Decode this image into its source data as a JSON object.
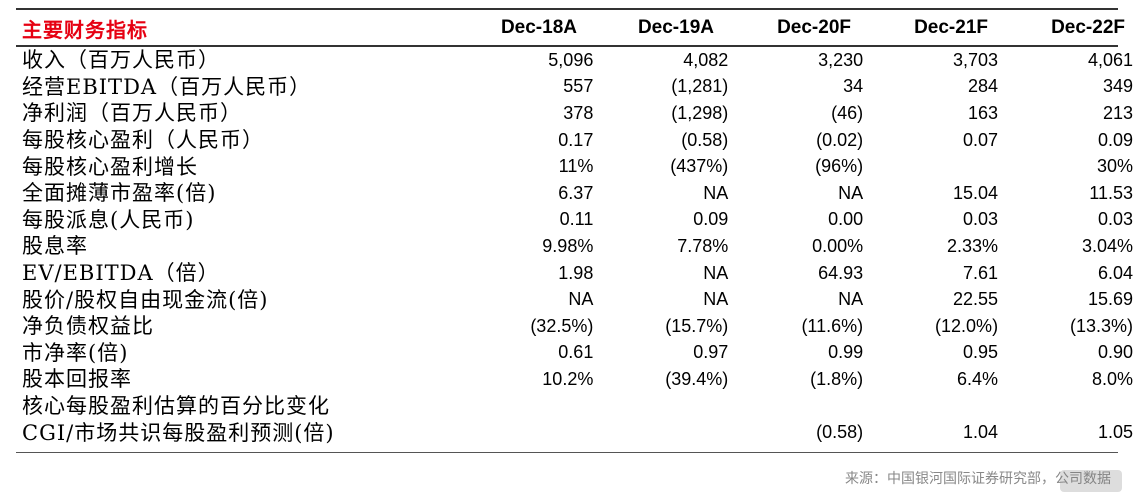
{
  "title": "主要财务指标",
  "columns": [
    "Dec-18A",
    "Dec-19A",
    "Dec-20F",
    "Dec-21F",
    "Dec-22F"
  ],
  "rows": [
    {
      "label": "收入（百万人民币）",
      "values": [
        "5,096",
        "4,082",
        "3,230",
        "3,703",
        "4,061"
      ]
    },
    {
      "label": "经营EBITDA（百万人民币）",
      "values": [
        "557",
        "(1,281)",
        "34",
        "284",
        "349"
      ]
    },
    {
      "label": "净利润（百万人民币）",
      "values": [
        "378",
        "(1,298)",
        "(46)",
        "163",
        "213"
      ]
    },
    {
      "label": "每股核心盈利（人民币）",
      "values": [
        "0.17",
        "(0.58)",
        "(0.02)",
        "0.07",
        "0.09"
      ]
    },
    {
      "label": "每股核心盈利增长",
      "values": [
        "11%",
        "(437%)",
        "(96%)",
        "",
        "30%"
      ]
    },
    {
      "label": "全面摊薄市盈率(倍)",
      "values": [
        "6.37",
        "NA",
        "NA",
        "15.04",
        "11.53"
      ]
    },
    {
      "label": "每股派息(人民币)",
      "values": [
        "0.11",
        "0.09",
        "0.00",
        "0.03",
        "0.03"
      ]
    },
    {
      "label": "股息率",
      "values": [
        "9.98%",
        "7.78%",
        "0.00%",
        "2.33%",
        "3.04%"
      ]
    },
    {
      "label": "EV/EBITDA（倍）",
      "values": [
        "1.98",
        "NA",
        "64.93",
        "7.61",
        "6.04"
      ]
    },
    {
      "label": "股价/股权自由现金流(倍)",
      "values": [
        "NA",
        "NA",
        "NA",
        "22.55",
        "15.69"
      ]
    },
    {
      "label": "净负债权益比",
      "values": [
        "(32.5%)",
        "(15.7%)",
        "(11.6%)",
        "(12.0%)",
        "(13.3%)"
      ]
    },
    {
      "label": "市净率(倍)",
      "values": [
        "0.61",
        "0.97",
        "0.99",
        "0.95",
        "0.90"
      ]
    },
    {
      "label": "股本回报率",
      "values": [
        "10.2%",
        "(39.4%)",
        "(1.8%)",
        "6.4%",
        "8.0%"
      ]
    },
    {
      "label": "核心每股盈利估算的百分比变化",
      "values": [
        "",
        "",
        "",
        "",
        ""
      ]
    },
    {
      "label": "CGI/市场共识每股盈利预测(倍)",
      "values": [
        "",
        "",
        "(0.58)",
        "1.04",
        "1.05"
      ]
    }
  ],
  "source": "来源：中国银河国际证券研究部，公司数据",
  "watermark": "格隆汇"
}
